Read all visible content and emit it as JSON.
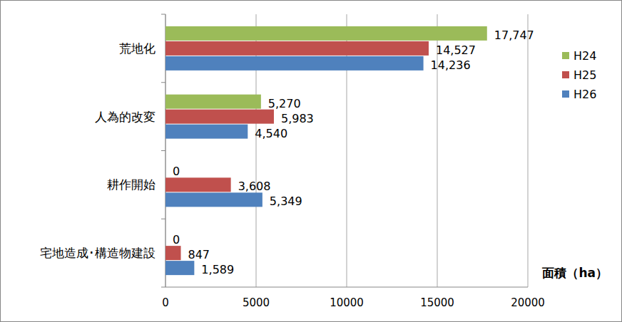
{
  "chart_data": {
    "type": "bar",
    "orientation": "horizontal",
    "x_label": "面積（ha）",
    "categories": [
      "荒地化",
      "人為的改変",
      "耕作開始",
      "宅地造成･構造物建設"
    ],
    "series": [
      {
        "name": "H24",
        "color": "#9BBB59",
        "values": [
          17747,
          5270,
          0,
          0
        ],
        "value_labels": [
          "17,747",
          "5,270",
          "0",
          "0"
        ]
      },
      {
        "name": "H25",
        "color": "#C0504D",
        "values": [
          14527,
          5983,
          3608,
          847
        ],
        "value_labels": [
          "14,527",
          "5,983",
          "3,608",
          "847"
        ]
      },
      {
        "name": "H26",
        "color": "#4F81BD",
        "values": [
          14236,
          4540,
          5349,
          1589
        ],
        "value_labels": [
          "14,236",
          "4,540",
          "5,349",
          "1,589"
        ]
      }
    ],
    "xlim": [
      0,
      20000
    ],
    "xticks": [
      0,
      5000,
      10000,
      15000,
      20000
    ],
    "grid": true,
    "legend": "right",
    "data_labels": true
  }
}
